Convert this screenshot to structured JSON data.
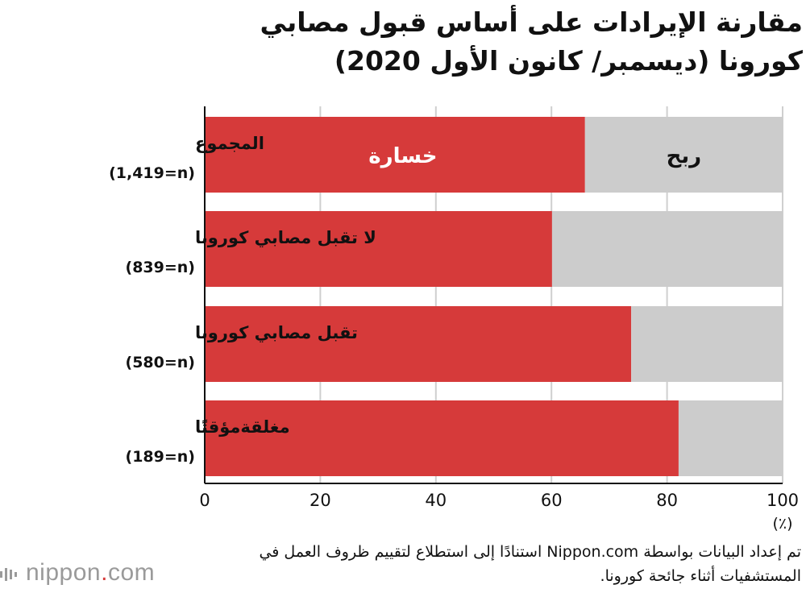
{
  "title": "مقارنة الإيرادات على أساس قبول مصابي كورونا (ديسمبر/ كانون الأول 2020)",
  "footnote": "تم إعداد البيانات بواسطة Nippon.com استنادًا إلى استطلاع لتقييم ظروف العمل في المستشفيات أثناء جائحة كورونا.",
  "logo": {
    "prefix": "nippon",
    "dot": ".",
    "suffix": "com"
  },
  "chart_data": {
    "type": "bar",
    "orientation": "horizontal",
    "stacked": true,
    "categories": [
      {
        "label": "المجموع",
        "n": "(1,419=n)"
      },
      {
        "label": "لا تقبل مصابي كورونا",
        "n": "(839=n)"
      },
      {
        "label": "تقبل مصابي كورونا",
        "n": "(580=n)"
      },
      {
        "label": "مغلقةمؤقتًا",
        "n": "(189=n)"
      }
    ],
    "series": [
      {
        "name": "خسارة",
        "values": [
          65.8,
          60.1,
          73.8,
          82.0
        ],
        "color": "#d63a3a"
      },
      {
        "name": "ربح",
        "values": [
          34.2,
          39.9,
          26.2,
          18.0
        ],
        "color": "#cccccc"
      }
    ],
    "xlim": [
      0,
      100
    ],
    "xticks": [
      "0",
      "20",
      "40",
      "60",
      "80",
      "100"
    ],
    "unit": "(٪)",
    "grid": true,
    "gridColor": "#cfcfcf",
    "axisColor": "#111111"
  }
}
